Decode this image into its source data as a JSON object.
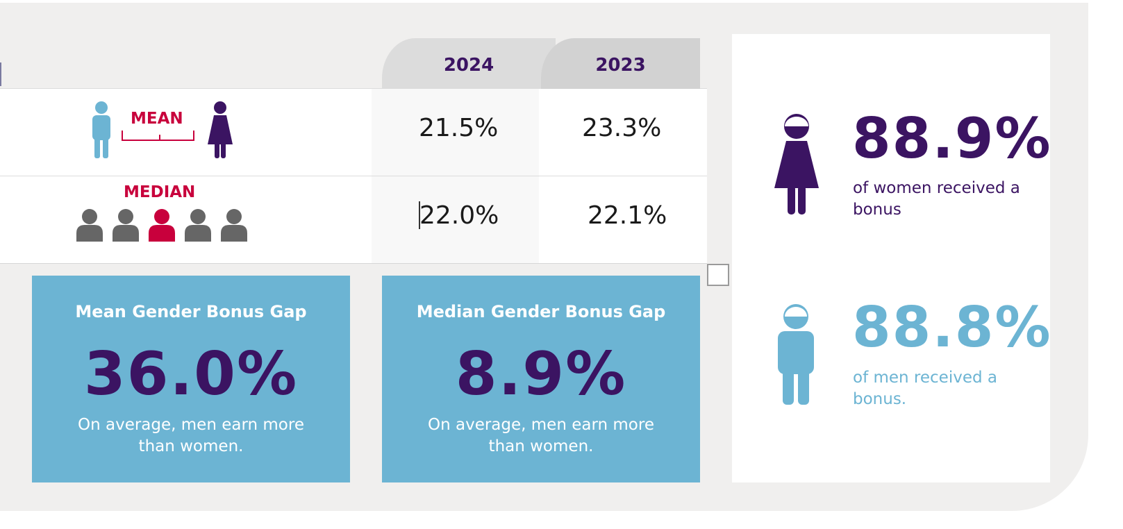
{
  "table": {
    "headers": [
      "2024",
      "2023"
    ],
    "rows": [
      {
        "label": "MEAN",
        "values": [
          "21.5%",
          "23.3%"
        ]
      },
      {
        "label": "MEDIAN",
        "values": [
          "22.0%",
          "22.1%"
        ]
      }
    ]
  },
  "bonus_gap": {
    "mean": {
      "title": "Mean Gender Bonus Gap",
      "value": "36.0%",
      "desc": "On average, men earn more than women."
    },
    "median": {
      "title": "Median Gender Bonus Gap",
      "value": "8.9%",
      "desc": "On average, men earn more than women."
    }
  },
  "received": {
    "women": {
      "value": "88.9%",
      "desc": "of women received a bonus"
    },
    "men": {
      "value": "88.8%",
      "desc": "of men received a bonus."
    }
  },
  "colors": {
    "purple": "#3b1462",
    "blue": "#6cb4d3",
    "crimson": "#c8003c",
    "gray": "#666666"
  },
  "icons": {
    "man": "man-icon",
    "woman": "woman-icon",
    "person": "person-icon"
  }
}
